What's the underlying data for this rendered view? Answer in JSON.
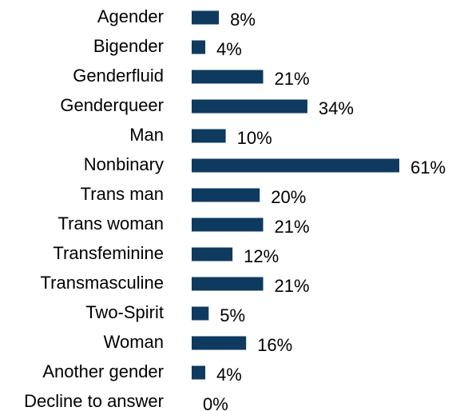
{
  "chart_data": {
    "type": "bar",
    "orientation": "horizontal",
    "color": "#0f3a5f",
    "categories": [
      "Agender",
      "Bigender",
      "Genderfluid",
      "Genderqueer",
      "Man",
      "Nonbinary",
      "Trans man",
      "Trans woman",
      "Transfeminine",
      "Transmasculine",
      "Two-Spirit",
      "Woman",
      "Another gender",
      "Decline to answer"
    ],
    "values": [
      8,
      4,
      21,
      34,
      10,
      61,
      20,
      21,
      12,
      21,
      5,
      16,
      4,
      0
    ],
    "value_labels": [
      "8%",
      "4%",
      "21%",
      "34%",
      "10%",
      "61%",
      "20%",
      "21%",
      "12%",
      "21%",
      "5%",
      "16%",
      "4%",
      "0%"
    ]
  }
}
